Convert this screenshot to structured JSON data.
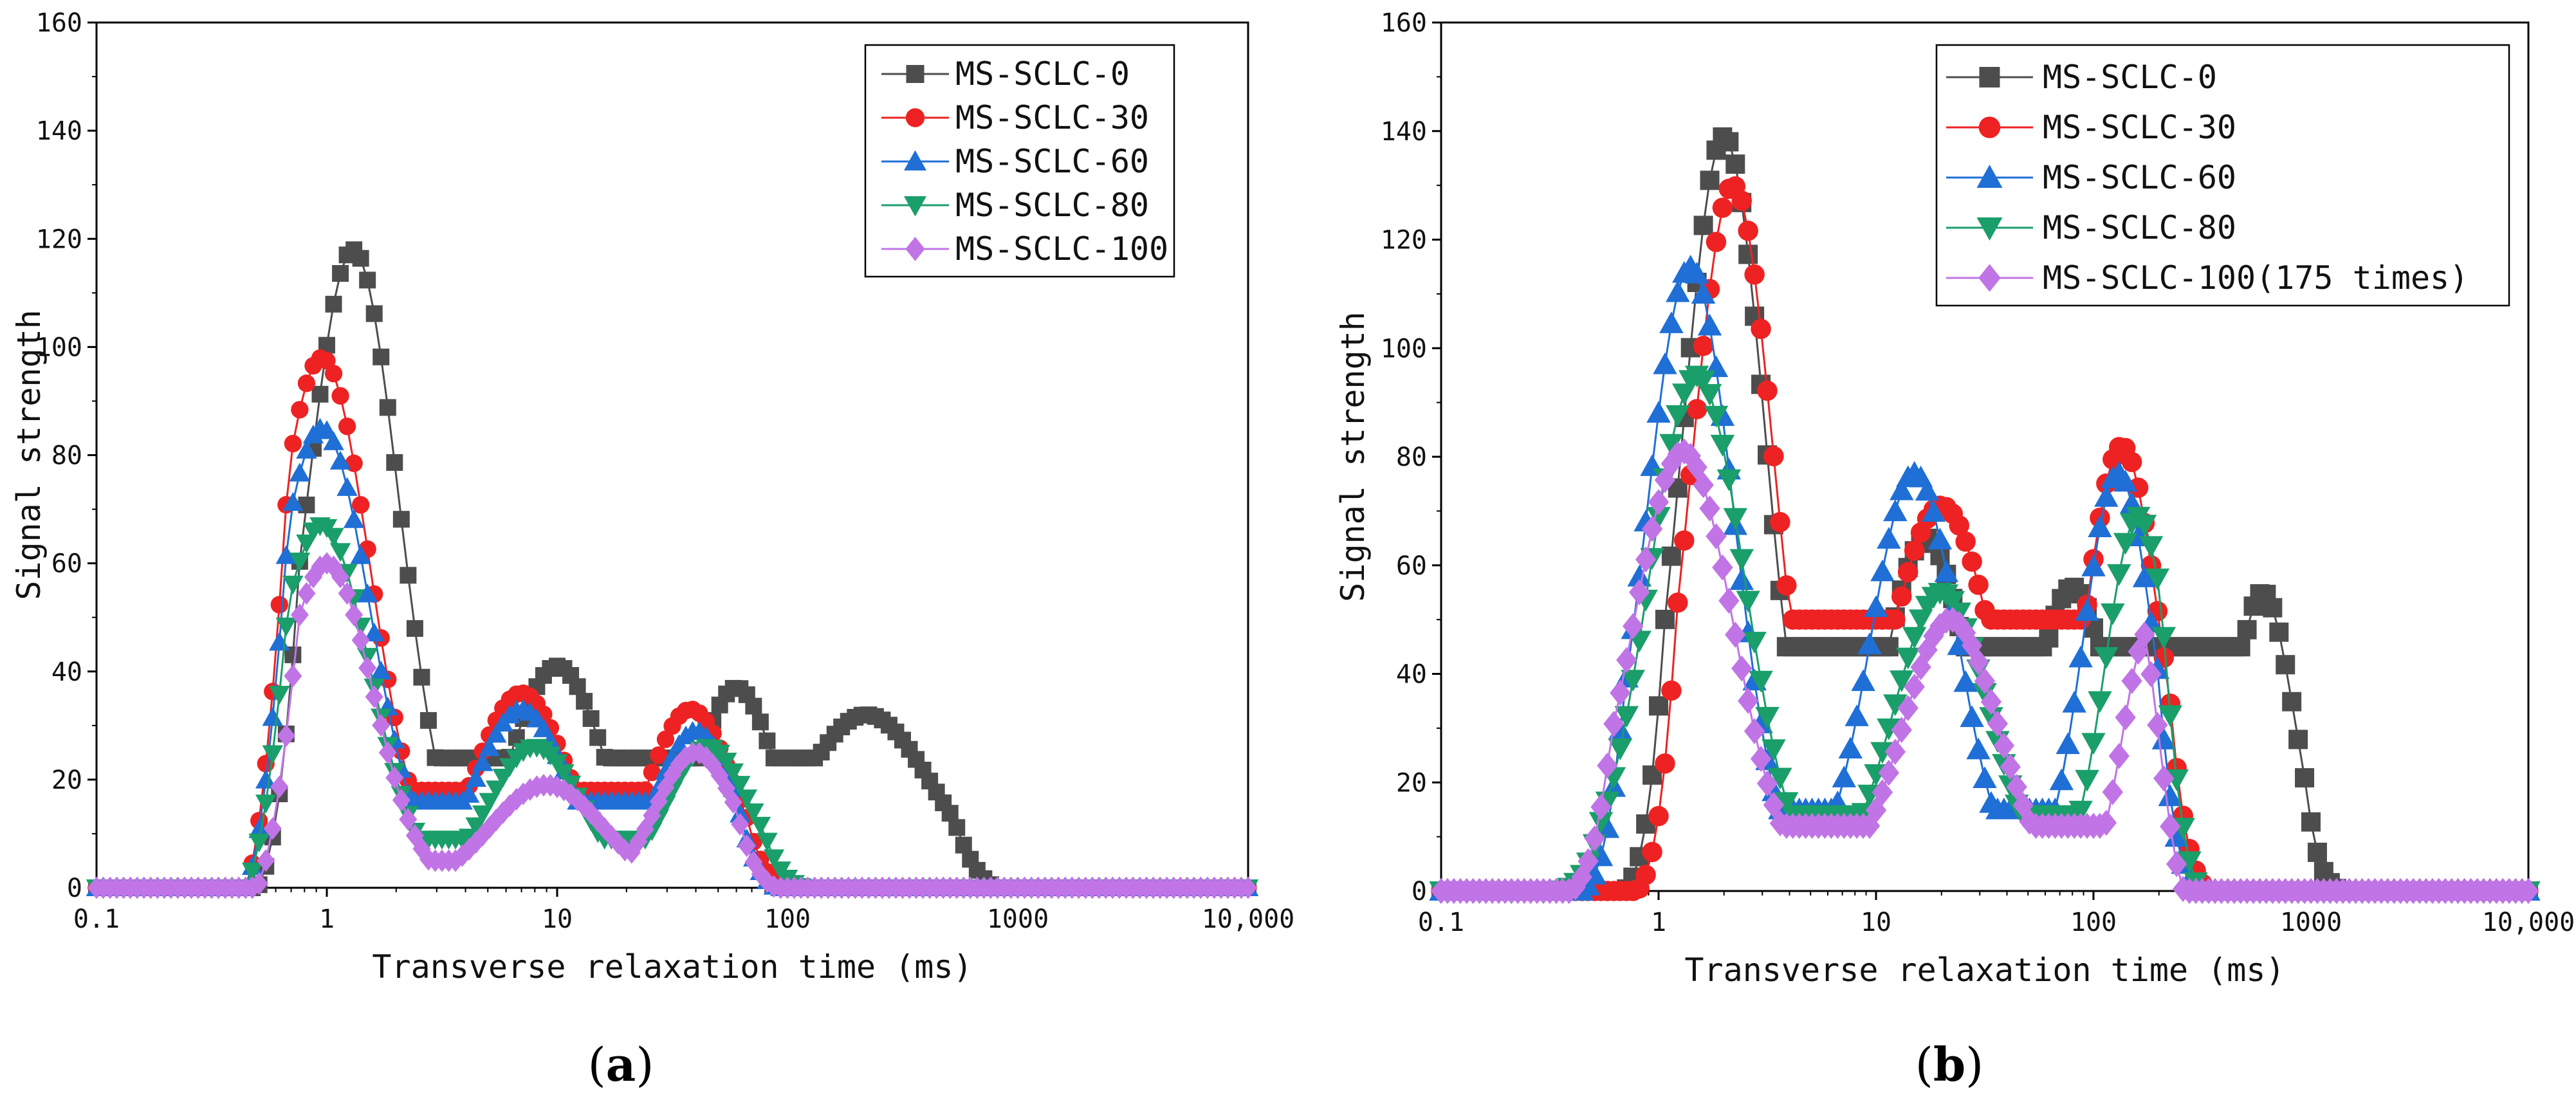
{
  "panels": {
    "a": {
      "letter_open": "(",
      "letter": "a",
      "letter_close": ")"
    },
    "b": {
      "letter_open": "(",
      "letter": "b",
      "letter_close": ")"
    }
  },
  "chart_data": [
    {
      "type": "line",
      "panel": "a",
      "xlabel": "Transverse relaxation time (ms)",
      "ylabel": "Signal strength",
      "xscale": "log",
      "xlim": [
        0.1,
        10000
      ],
      "ylim": [
        0,
        160
      ],
      "xticks": [
        {
          "value": 0.1,
          "label": "0.1"
        },
        {
          "value": 1,
          "label": "1"
        },
        {
          "value": 10,
          "label": "10"
        },
        {
          "value": 100,
          "label": "100"
        },
        {
          "value": 1000,
          "label": "1000"
        },
        {
          "value": 10000,
          "label": "10,000"
        }
      ],
      "yticks": [
        {
          "value": 0,
          "label": "0"
        },
        {
          "value": 20,
          "label": "20"
        },
        {
          "value": 40,
          "label": "40"
        },
        {
          "value": 60,
          "label": "60"
        },
        {
          "value": 80,
          "label": "80"
        },
        {
          "value": 100,
          "label": "100"
        },
        {
          "value": 120,
          "label": "120"
        },
        {
          "value": 140,
          "label": "140"
        },
        {
          "value": 160,
          "label": "160"
        }
      ],
      "legend_position": "top-right",
      "series": [
        {
          "name": "MS-SCLC-0",
          "color": "#4d4d4d",
          "marker": "square",
          "start": 0.5,
          "end": 800,
          "peaks": [
            {
              "x": 1.3,
              "y": 118,
              "w": 0.2
            },
            {
              "x": 10,
              "y": 41,
              "w": 0.2
            },
            {
              "x": 60,
              "y": 37,
              "w": 0.17
            },
            {
              "x": 220,
              "y": 32,
              "w": 0.28
            }
          ],
          "baseline": 24
        },
        {
          "name": "MS-SCLC-30",
          "color": "#ee2222",
          "marker": "circle",
          "start": 0.45,
          "end": 100,
          "peaks": [
            {
              "x": 0.95,
              "y": 98,
              "w": 0.21
            },
            {
              "x": 7,
              "y": 36,
              "w": 0.2
            },
            {
              "x": 38,
              "y": 33,
              "w": 0.18
            }
          ],
          "baseline": 18
        },
        {
          "name": "MS-SCLC-60",
          "color": "#1f6fd6",
          "marker": "triangle-up",
          "start": 0.45,
          "end": 90,
          "peaks": [
            {
              "x": 0.95,
              "y": 85,
              "w": 0.21
            },
            {
              "x": 7,
              "y": 33,
              "w": 0.2
            },
            {
              "x": 40,
              "y": 29,
              "w": 0.17
            }
          ],
          "baseline": 16
        },
        {
          "name": "MS-SCLC-80",
          "color": "#1a9e6a",
          "marker": "triangle-down",
          "start": 0.45,
          "end": 120,
          "peaks": [
            {
              "x": 0.95,
              "y": 67,
              "w": 0.21
            },
            {
              "x": 8,
              "y": 26,
              "w": 0.2
            },
            {
              "x": 45,
              "y": 26,
              "w": 0.18
            }
          ],
          "baseline": 9
        },
        {
          "name": "MS-SCLC-100",
          "color": "#c074e6",
          "marker": "diamond",
          "start": 0.5,
          "end": 90,
          "peaks": [
            {
              "x": 1,
              "y": 60,
              "w": 0.2
            },
            {
              "x": 9,
              "y": 19,
              "w": 0.24
            },
            {
              "x": 40,
              "y": 25,
              "w": 0.17
            }
          ],
          "baseline": 5
        }
      ]
    },
    {
      "type": "line",
      "panel": "b",
      "xlabel": "Transverse relaxation time (ms)",
      "ylabel": "Signal strength",
      "xscale": "log",
      "xlim": [
        0.1,
        10000
      ],
      "ylim": [
        0,
        160
      ],
      "xticks": [
        {
          "value": 0.1,
          "label": "0.1"
        },
        {
          "value": 1,
          "label": "1"
        },
        {
          "value": 10,
          "label": "10"
        },
        {
          "value": 100,
          "label": "100"
        },
        {
          "value": 1000,
          "label": "1000"
        },
        {
          "value": 10000,
          "label": "10,000"
        }
      ],
      "yticks": [
        {
          "value": 0,
          "label": "0"
        },
        {
          "value": 20,
          "label": "20"
        },
        {
          "value": 40,
          "label": "40"
        },
        {
          "value": 60,
          "label": "60"
        },
        {
          "value": 80,
          "label": "80"
        },
        {
          "value": 100,
          "label": "100"
        },
        {
          "value": 120,
          "label": "120"
        },
        {
          "value": 140,
          "label": "140"
        },
        {
          "value": 160,
          "label": "160"
        }
      ],
      "legend_position": "top-right",
      "series": [
        {
          "name": "MS-SCLC-0",
          "color": "#4d4d4d",
          "marker": "square",
          "start": 0.7,
          "end": 1400,
          "peaks": [
            {
              "x": 2,
              "y": 139,
              "w": 0.19
            },
            {
              "x": 17,
              "y": 65,
              "w": 0.2
            },
            {
              "x": 80,
              "y": 56,
              "w": 0.18
            },
            {
              "x": 600,
              "y": 55,
              "w": 0.14
            }
          ],
          "baseline": 45
        },
        {
          "name": "MS-SCLC-30",
          "color": "#ee2222",
          "marker": "circle",
          "start": 0.8,
          "end": 340,
          "peaks": [
            {
              "x": 2.2,
              "y": 130,
              "w": 0.19
            },
            {
              "x": 20,
              "y": 71,
              "w": 0.25
            },
            {
              "x": 135,
              "y": 82,
              "w": 0.17
            }
          ],
          "baseline": 50
        },
        {
          "name": "MS-SCLC-60",
          "color": "#1f6fd6",
          "marker": "triangle-up",
          "start": 0.45,
          "end": 300,
          "peaks": [
            {
              "x": 1.4,
              "y": 115,
              "w": 0.2
            },
            {
              "x": 15,
              "y": 77,
              "w": 0.2
            },
            {
              "x": 130,
              "y": 77,
              "w": 0.16
            }
          ],
          "baseline": 15
        },
        {
          "name": "MS-SCLC-80",
          "color": "#1a9e6a",
          "marker": "triangle-down",
          "start": 0.35,
          "end": 310,
          "peaks": [
            {
              "x": 1.5,
              "y": 95,
              "w": 0.22
            },
            {
              "x": 20,
              "y": 55,
              "w": 0.22
            },
            {
              "x": 160,
              "y": 69,
              "w": 0.15
            }
          ],
          "baseline": 14
        },
        {
          "name": "MS-SCLC-100(175 times)",
          "color": "#c074e6",
          "marker": "diamond",
          "start": 0.4,
          "end": 260,
          "peaks": [
            {
              "x": 1.3,
              "y": 81,
              "w": 0.23
            },
            {
              "x": 22,
              "y": 50,
              "w": 0.22
            },
            {
              "x": 180,
              "y": 48,
              "w": 0.12
            }
          ],
          "baseline": 12
        }
      ]
    }
  ]
}
